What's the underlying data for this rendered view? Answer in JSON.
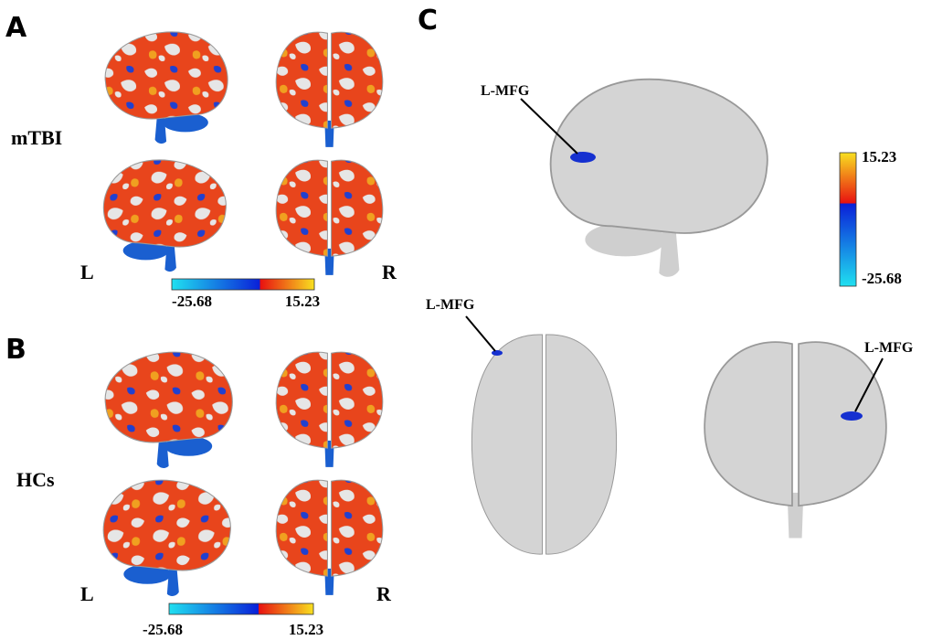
{
  "panels": {
    "a": {
      "label": "A",
      "group": "mTBI",
      "left": "L",
      "right": "R",
      "colorbar": {
        "min": -25.68,
        "max": 15.23
      }
    },
    "b": {
      "label": "B",
      "group": "HCs",
      "left": "L",
      "right": "R",
      "colorbar": {
        "min": -25.68,
        "max": 15.23
      }
    },
    "c": {
      "label": "C",
      "annotations": [
        "L-MFG",
        "L-MFG",
        "L-MFG"
      ],
      "colorbar": {
        "min": -25.68,
        "max": 15.23
      }
    }
  }
}
